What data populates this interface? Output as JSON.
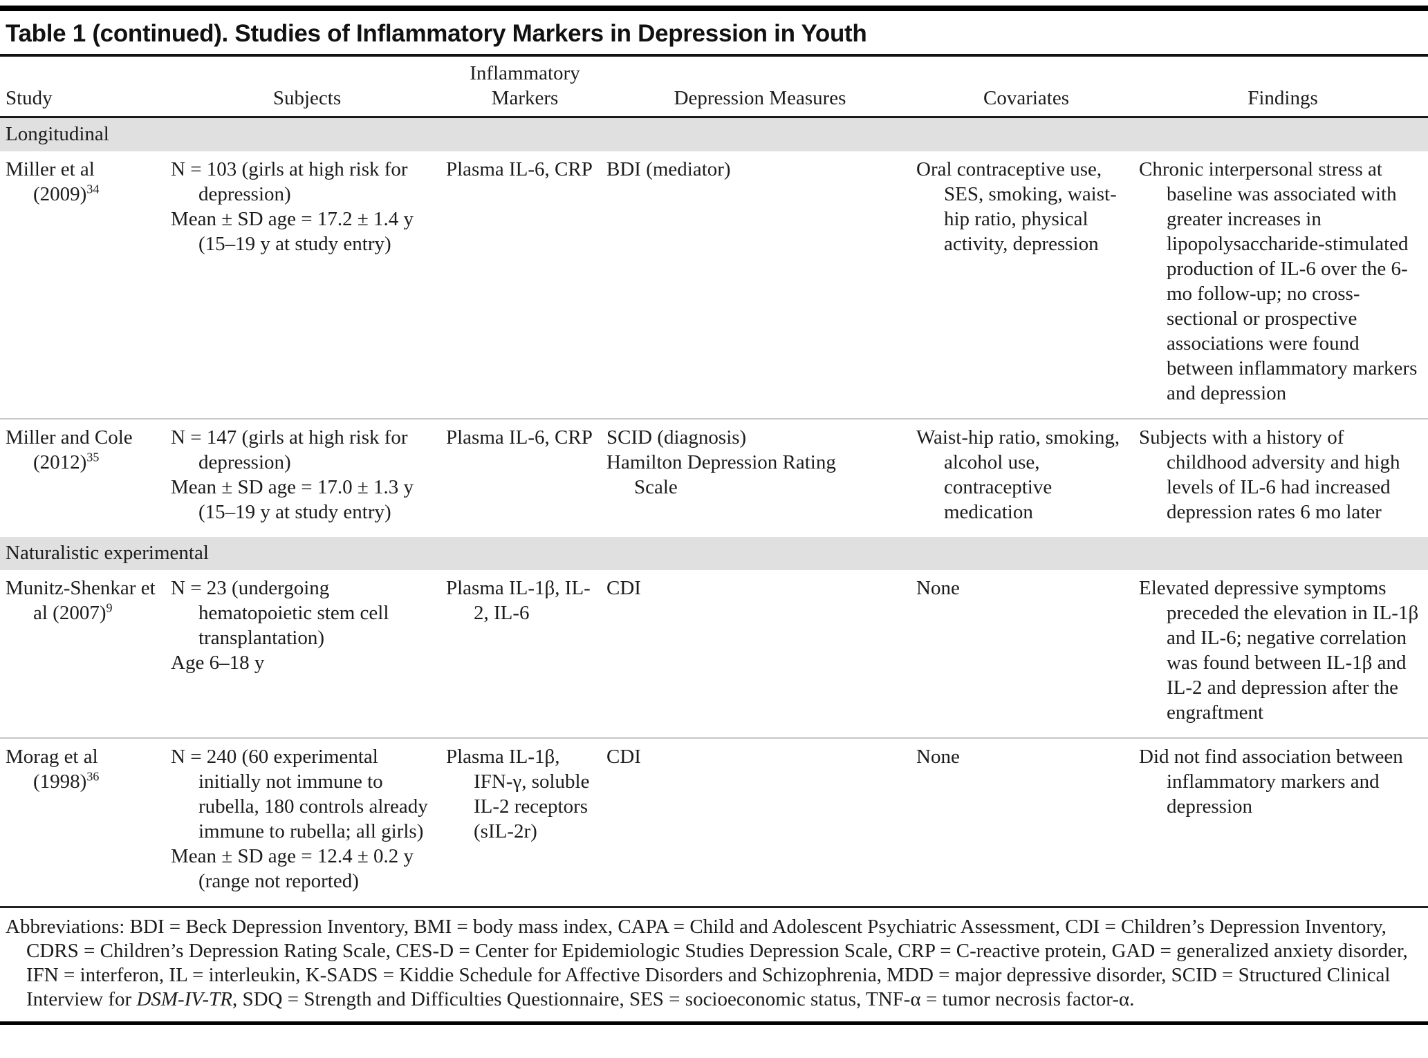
{
  "title": "Table 1 (continued). Studies of Inflammatory Markers in Depression in Youth",
  "header": {
    "study": "Study",
    "subjects": "Subjects",
    "markers": "Inflammatory Markers",
    "measures": "Depression Measures",
    "covariates": "Covariates",
    "findings": "Findings"
  },
  "sections": [
    "Longitudinal",
    "Naturalistic experimental"
  ],
  "rows": [
    {
      "study_main": "Miller et al (2009)",
      "study_ref": "34",
      "subjects": [
        "N = 103 (girls at high risk for depression)",
        "Mean ± SD age = 17.2 ± 1.4 y (15–19 y at study entry)"
      ],
      "markers": [
        "Plasma IL-6, CRP"
      ],
      "measures": [
        "BDI (mediator)"
      ],
      "covariates": [
        "Oral contraceptive use, SES, smoking, waist-hip ratio, physical activity, depression"
      ],
      "findings": [
        "Chronic interpersonal stress at baseline was associated with greater increases in lipopolysaccharide-stimulated production of IL-6 over the 6-mo follow-up; no cross-sectional or prospective associations were found between inflammatory markers and depression"
      ]
    },
    {
      "study_main": "Miller and Cole (2012)",
      "study_ref": "35",
      "subjects": [
        "N = 147 (girls at high risk for depression)",
        "Mean ± SD age = 17.0 ± 1.3 y (15–19 y at study entry)"
      ],
      "markers": [
        "Plasma IL-6, CRP"
      ],
      "measures": [
        "SCID (diagnosis)",
        "Hamilton Depression Rating Scale"
      ],
      "covariates": [
        "Waist-hip ratio, smoking, alcohol use, contraceptive medication"
      ],
      "findings": [
        "Subjects with a history of childhood adversity and high levels of IL-6 had increased depression rates 6 mo later"
      ]
    },
    {
      "study_main": "Munitz-Shenkar et al (2007)",
      "study_ref": "9",
      "subjects": [
        "N = 23 (undergoing hematopoietic stem cell transplantation)",
        "Age 6–18 y"
      ],
      "markers": [
        "Plasma IL-1β, IL-2, IL-6"
      ],
      "measures": [
        "CDI"
      ],
      "covariates": [
        "None"
      ],
      "findings": [
        "Elevated depressive symptoms preceded the elevation in IL-1β and IL-6; negative correlation was found between IL-1β and IL-2 and depression after the engraftment"
      ]
    },
    {
      "study_main": "Morag et al (1998)",
      "study_ref": "36",
      "subjects": [
        "N = 240 (60 experimental initially not immune to rubella, 180 controls already immune to rubella; all girls)",
        "Mean ± SD age = 12.4 ± 0.2 y (range not reported)"
      ],
      "markers": [
        "Plasma IL-1β, IFN-γ, soluble IL-2 receptors (sIL-2r)"
      ],
      "measures": [
        "CDI"
      ],
      "covariates": [
        "None"
      ],
      "findings": [
        "Did not find association between inflammatory markers and depression"
      ]
    }
  ],
  "footnote": {
    "pre": "Abbreviations: BDI = Beck Depression Inventory, BMI = body mass index, CAPA = Child and Adolescent Psychiatric Assessment, CDI = Children’s Depression Inventory, CDRS = Children’s Depression Rating Scale, CES-D = Center for Epidemiologic Studies Depression Scale, CRP = C-reactive protein, GAD = generalized anxiety disorder, IFN = interferon, IL = interleukin, K-SADS = Kiddie Schedule for Affective Disorders and Schizophrenia, MDD = major depressive disorder, SCID = Structured Clinical Interview for ",
    "italic": "DSM-IV-TR",
    "post": ", SDQ = Strength and Difficulties Questionnaire, SES = socioeconomic status, TNF-α = tumor necrosis factor-α."
  },
  "colors": {
    "section_band": "#e0e0e0",
    "text": "#1c1c1c",
    "rule_dark": "#000000",
    "rule_light": "#c6c6c6"
  }
}
